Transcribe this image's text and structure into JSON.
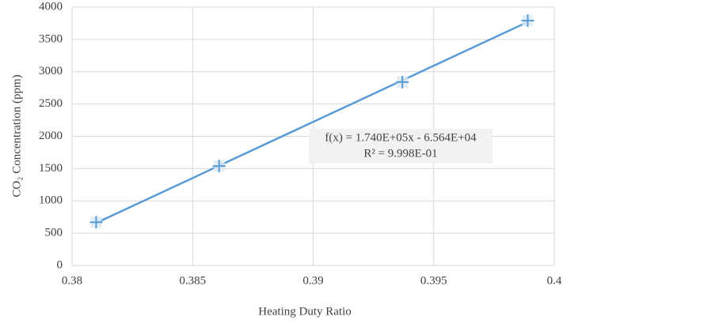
{
  "chart_data": {
    "type": "scatter",
    "x_label": "Heating Duty Ratio",
    "y_label": "CO₂ Concentration (ppm)",
    "series": [
      {
        "color": "#5b9bd5",
        "x": [
          0.381,
          0.3861,
          0.3937,
          0.3989
        ],
        "values": [
          670,
          1540,
          2840,
          3790
        ]
      }
    ],
    "trendline": {
      "type": "linear",
      "equation": "f(x) = 1.740E+05x - 6.564E+04",
      "r_squared": "R² = 9.998E-01"
    },
    "xlim": [
      0.38,
      0.4
    ],
    "xticks": [
      0.38,
      0.385,
      0.39,
      0.395,
      0.4
    ],
    "ylim": [
      0,
      4000
    ],
    "yticks": [
      0,
      500,
      1000,
      1500,
      2000,
      2500,
      3000,
      3500,
      4000
    ],
    "grid": true
  }
}
